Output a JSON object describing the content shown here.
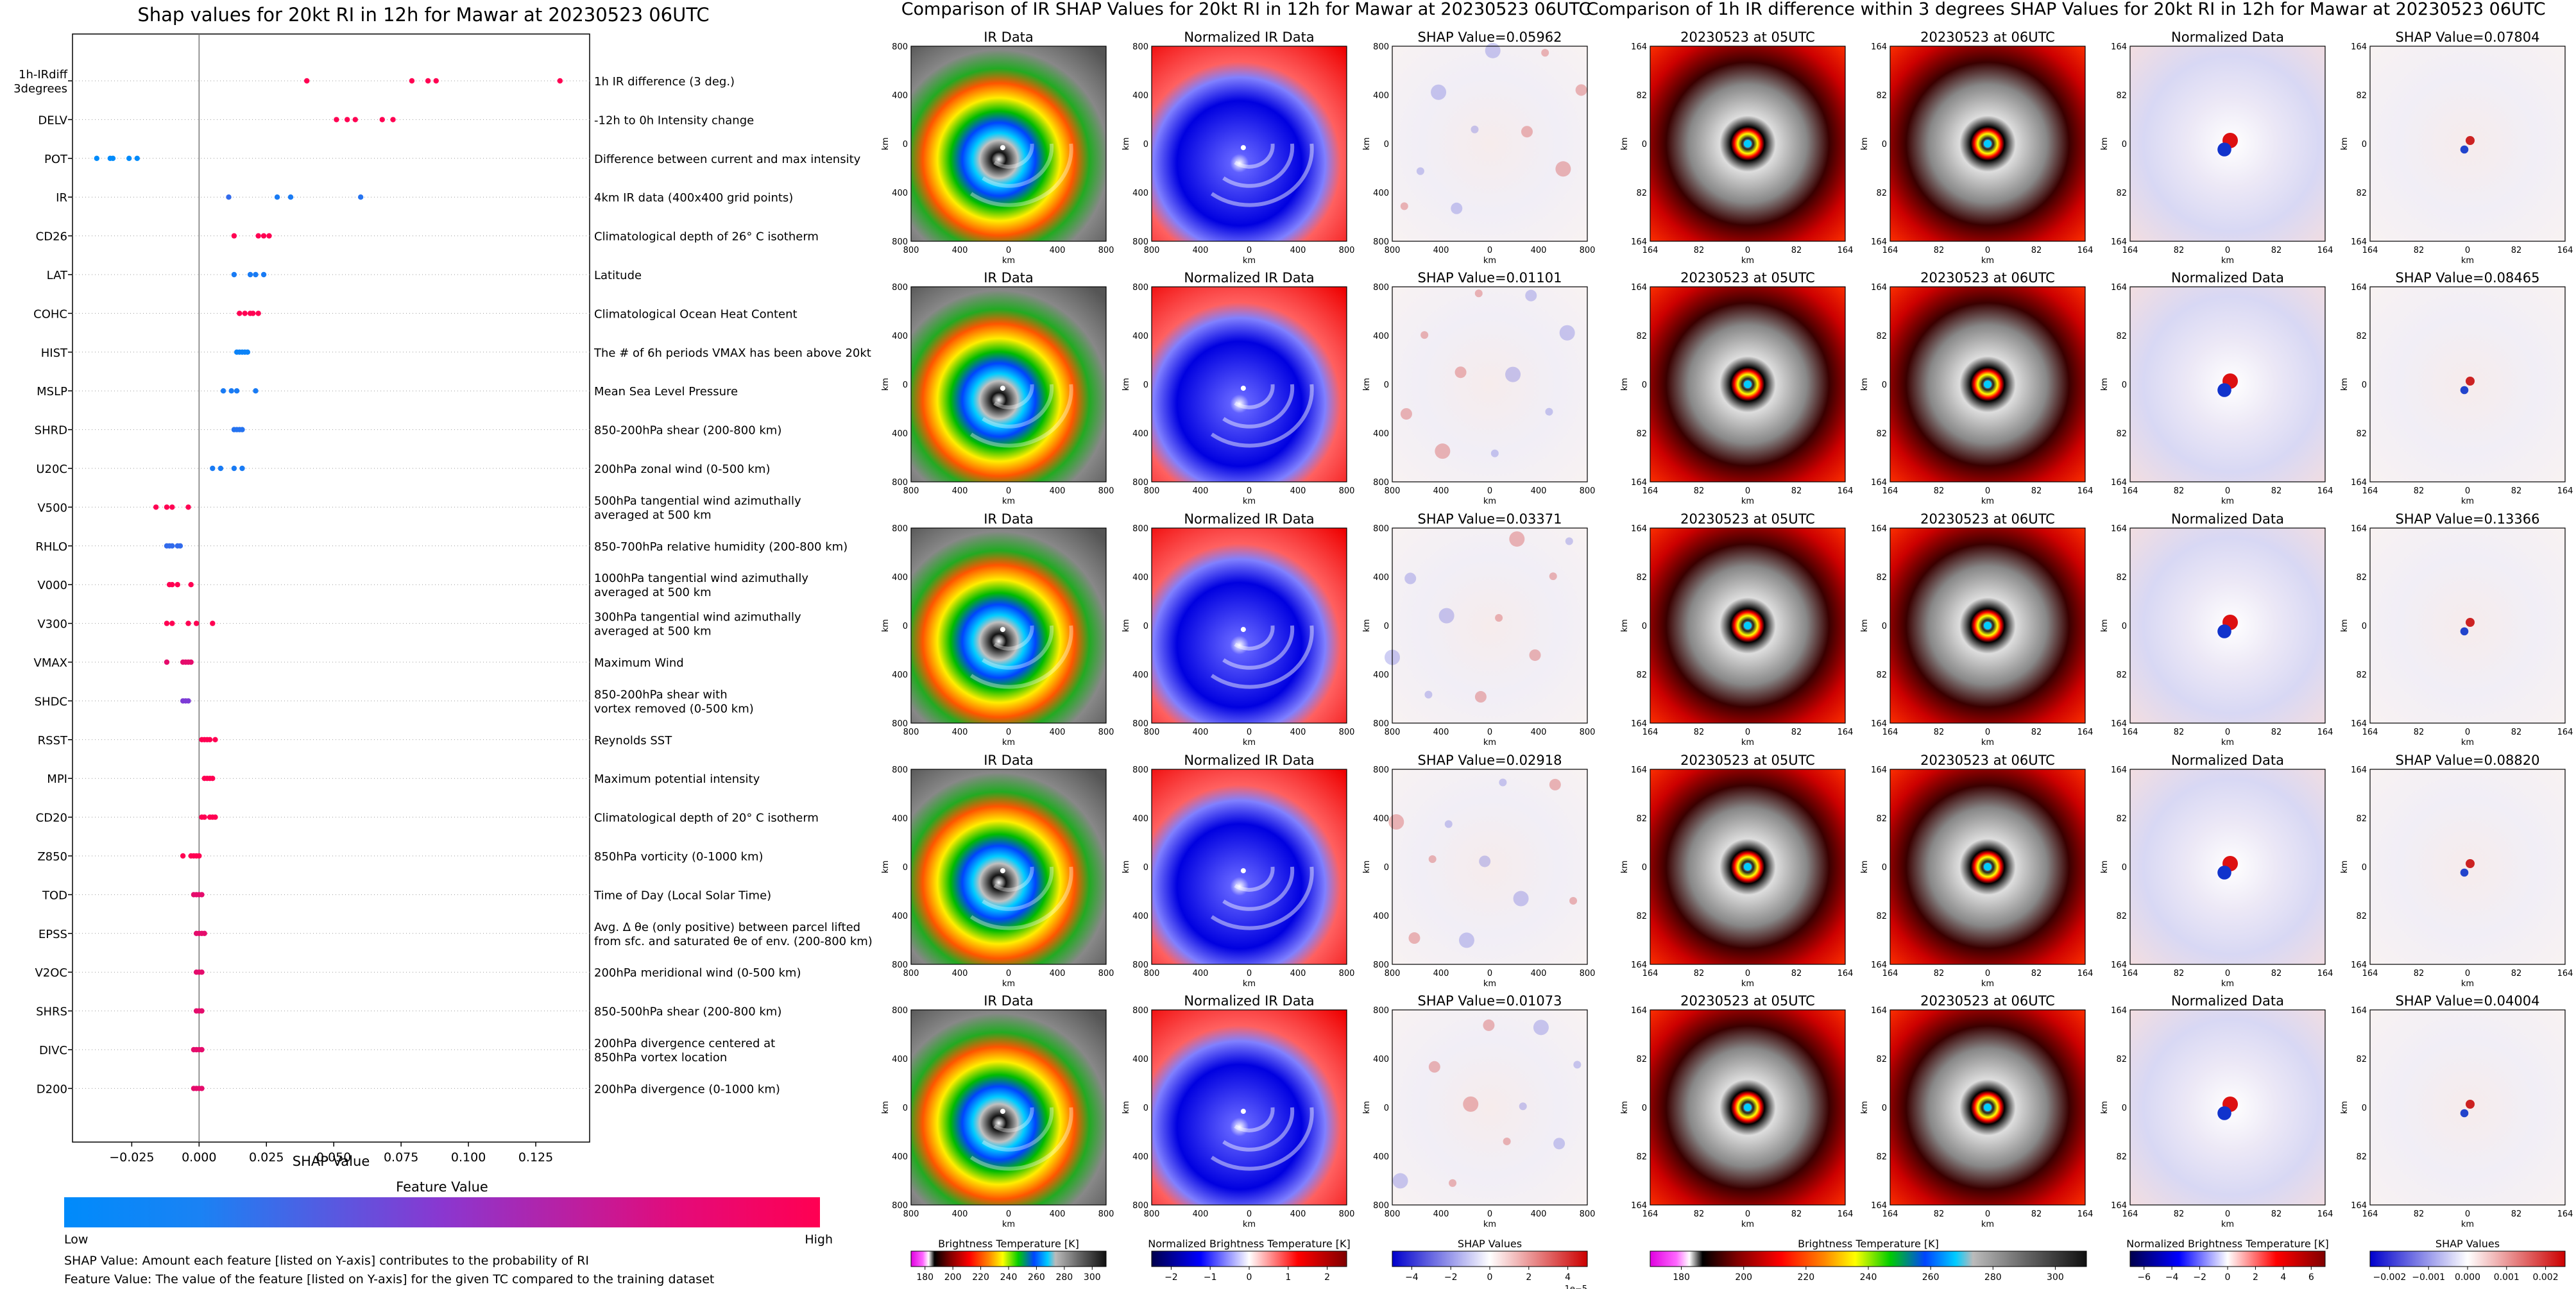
{
  "titles": {
    "left": "Shap values for 20kt RI in 12h for Mawar at 20230523 06UTC",
    "middle": "Comparison of IR SHAP Values for 20kt RI in 12h for Mawar at 20230523 06UTC",
    "right": "Comparison of 1h IR difference within 3 degrees SHAP Values for 20kt RI in 12h for Mawar at 20230523 06UTC"
  },
  "chart_data": [
    {
      "type": "scatter",
      "title": "Shap values for 20kt RI in 12h for Mawar at 20230523 06UTC",
      "xlabel": "SHAP Value",
      "ylabel": "",
      "xlim": [
        -0.047,
        0.145
      ],
      "xticks": [
        -0.025,
        0.0,
        0.025,
        0.05,
        0.075,
        0.1,
        0.125
      ],
      "xtick_labels": [
        "−0.025",
        "0.000",
        "0.025",
        "0.050",
        "0.075",
        "0.100",
        "0.125"
      ],
      "grid": false,
      "colorbar": {
        "title": "Feature Value",
        "low": "Low",
        "high": "High",
        "colors": [
          "#008bfb",
          "#7c3bd6",
          "#ff0052"
        ]
      },
      "features": [
        {
          "code": "1h-IRdiff\n3degrees",
          "desc": "1h IR difference (3 deg.)",
          "points": [
            [
              0.04,
              1.0
            ],
            [
              0.079,
              1.0
            ],
            [
              0.085,
              1.0
            ],
            [
              0.088,
              1.0
            ],
            [
              0.134,
              1.0
            ]
          ]
        },
        {
          "code": "DELV",
          "desc": "-12h to 0h Intensity change",
          "points": [
            [
              0.051,
              1.0
            ],
            [
              0.055,
              1.0
            ],
            [
              0.058,
              1.0
            ],
            [
              0.068,
              1.0
            ],
            [
              0.072,
              1.0
            ]
          ]
        },
        {
          "code": "POT",
          "desc": "Difference between current and max intensity",
          "points": [
            [
              -0.038,
              0.0
            ],
            [
              -0.033,
              0.0
            ],
            [
              -0.032,
              0.0
            ],
            [
              -0.026,
              0.0
            ],
            [
              -0.023,
              0.0
            ]
          ]
        },
        {
          "code": "IR",
          "desc": "4km IR data (400x400 grid points)",
          "points": [
            [
              0.011,
              0.2
            ],
            [
              0.029,
              0.1
            ],
            [
              0.034,
              0.1
            ],
            [
              0.06,
              0.15
            ]
          ]
        },
        {
          "code": "CD26",
          "desc": "Climatological depth of 26° C isotherm",
          "points": [
            [
              0.013,
              1.0
            ],
            [
              0.022,
              1.0
            ],
            [
              0.024,
              1.0
            ],
            [
              0.026,
              1.0
            ]
          ]
        },
        {
          "code": "LAT",
          "desc": "Latitude",
          "points": [
            [
              0.013,
              0.1
            ],
            [
              0.019,
              0.1
            ],
            [
              0.021,
              0.1
            ],
            [
              0.024,
              0.1
            ]
          ]
        },
        {
          "code": "COHC",
          "desc": "Climatological Ocean Heat Content",
          "points": [
            [
              0.015,
              1.0
            ],
            [
              0.017,
              1.0
            ],
            [
              0.019,
              1.0
            ],
            [
              0.02,
              1.0
            ],
            [
              0.022,
              1.0
            ]
          ]
        },
        {
          "code": "HIST",
          "desc": "The # of 6h periods VMAX has been above 20kt",
          "points": [
            [
              0.014,
              0.05
            ],
            [
              0.015,
              0.05
            ],
            [
              0.016,
              0.05
            ],
            [
              0.017,
              0.05
            ],
            [
              0.018,
              0.05
            ]
          ]
        },
        {
          "code": "MSLP",
          "desc": "Mean Sea Level Pressure",
          "points": [
            [
              0.009,
              0.1
            ],
            [
              0.012,
              0.1
            ],
            [
              0.014,
              0.1
            ],
            [
              0.021,
              0.1
            ]
          ]
        },
        {
          "code": "SHRD",
          "desc": "850-200hPa shear (200-800 km)",
          "points": [
            [
              0.013,
              0.15
            ],
            [
              0.014,
              0.15
            ],
            [
              0.015,
              0.15
            ],
            [
              0.016,
              0.15
            ]
          ]
        },
        {
          "code": "U20C",
          "desc": "200hPa zonal wind (0-500 km)",
          "points": [
            [
              0.005,
              0.1
            ],
            [
              0.008,
              0.1
            ],
            [
              0.013,
              0.1
            ],
            [
              0.016,
              0.1
            ]
          ]
        },
        {
          "code": "V500",
          "desc": "500hPa tangential wind azimuthally\naveraged at 500 km",
          "points": [
            [
              -0.016,
              1.0
            ],
            [
              -0.012,
              1.0
            ],
            [
              -0.01,
              1.0
            ],
            [
              -0.004,
              1.0
            ]
          ]
        },
        {
          "code": "RHLO",
          "desc": "850-700hPa relative humidity (200-800 km)",
          "points": [
            [
              -0.012,
              0.2
            ],
            [
              -0.011,
              0.2
            ],
            [
              -0.01,
              0.2
            ],
            [
              -0.008,
              0.2
            ],
            [
              -0.007,
              0.2
            ]
          ]
        },
        {
          "code": "V000",
          "desc": "1000hPa tangential wind azimuthally\naveraged at 500 km",
          "points": [
            [
              -0.011,
              1.0
            ],
            [
              -0.01,
              1.0
            ],
            [
              -0.008,
              1.0
            ],
            [
              -0.003,
              1.0
            ]
          ]
        },
        {
          "code": "V300",
          "desc": "300hPa tangential wind azimuthally\naveraged at 500 km",
          "points": [
            [
              -0.012,
              1.0
            ],
            [
              -0.01,
              1.0
            ],
            [
              -0.004,
              1.0
            ],
            [
              -0.001,
              1.0
            ],
            [
              0.005,
              1.0
            ]
          ]
        },
        {
          "code": "VMAX",
          "desc": "Maximum Wind",
          "points": [
            [
              -0.012,
              0.9
            ],
            [
              -0.006,
              0.9
            ],
            [
              -0.005,
              0.9
            ],
            [
              -0.004,
              0.9
            ],
            [
              -0.003,
              0.9
            ]
          ]
        },
        {
          "code": "SHDC",
          "desc": "850-200hPa shear with\nvortex removed (0-500 km)",
          "points": [
            [
              -0.006,
              0.5
            ],
            [
              -0.005,
              0.5
            ],
            [
              -0.004,
              0.5
            ]
          ]
        },
        {
          "code": "RSST",
          "desc": "Reynolds SST",
          "points": [
            [
              0.001,
              1.0
            ],
            [
              0.002,
              1.0
            ],
            [
              0.003,
              1.0
            ],
            [
              0.004,
              1.0
            ],
            [
              0.006,
              1.0
            ]
          ]
        },
        {
          "code": "MPI",
          "desc": "Maximum potential intensity",
          "points": [
            [
              0.002,
              1.0
            ],
            [
              0.003,
              1.0
            ],
            [
              0.004,
              1.0
            ],
            [
              0.005,
              1.0
            ]
          ]
        },
        {
          "code": "CD20",
          "desc": "Climatological depth of 20° C isotherm",
          "points": [
            [
              0.001,
              1.0
            ],
            [
              0.002,
              1.0
            ],
            [
              0.004,
              1.0
            ],
            [
              0.005,
              1.0
            ],
            [
              0.006,
              1.0
            ]
          ]
        },
        {
          "code": "Z850",
          "desc": "850hPa vorticity (0-1000 km)",
          "points": [
            [
              -0.006,
              1.0
            ],
            [
              -0.003,
              1.0
            ],
            [
              -0.002,
              1.0
            ],
            [
              -0.001,
              1.0
            ],
            [
              0.0,
              1.0
            ]
          ]
        },
        {
          "code": "TOD",
          "desc": "Time of Day (Local Solar Time)",
          "points": [
            [
              -0.002,
              0.9
            ],
            [
              -0.001,
              0.9
            ],
            [
              0.0,
              0.9
            ],
            [
              0.001,
              0.9
            ]
          ]
        },
        {
          "code": "EPSS",
          "desc": "Avg. Δ θe (only positive) between parcel lifted\nfrom sfc. and saturated θe of env. (200-800 km)",
          "points": [
            [
              -0.001,
              0.9
            ],
            [
              0.0,
              0.9
            ],
            [
              0.001,
              0.9
            ],
            [
              0.002,
              0.9
            ]
          ]
        },
        {
          "code": "V2OC",
          "desc": "200hPa meridional wind (0-500 km)",
          "points": [
            [
              -0.001,
              0.9
            ],
            [
              0.0,
              0.9
            ],
            [
              0.001,
              0.9
            ]
          ]
        },
        {
          "code": "SHRS",
          "desc": "850-500hPa shear (200-800 km)",
          "points": [
            [
              -0.001,
              0.9
            ],
            [
              0.0,
              0.9
            ],
            [
              0.001,
              0.9
            ]
          ]
        },
        {
          "code": "DIVC",
          "desc": "200hPa divergence centered at\n850hPa vortex location",
          "points": [
            [
              -0.002,
              0.9
            ],
            [
              -0.001,
              0.9
            ],
            [
              0.0,
              0.9
            ],
            [
              0.001,
              0.9
            ]
          ]
        },
        {
          "code": "D200",
          "desc": "200hPa divergence (0-1000 km)",
          "points": [
            [
              -0.002,
              0.9
            ],
            [
              -0.001,
              0.9
            ],
            [
              0.0,
              0.9
            ],
            [
              0.001,
              0.9
            ]
          ]
        }
      ]
    },
    {
      "type": "heatmap",
      "title": "Comparison of IR SHAP Values for 20kt RI in 12h for Mawar at 20230523 06UTC",
      "columns": [
        "IR Data",
        "Normalized IR Data",
        "SHAP Value"
      ],
      "shap_values": [
        "0.05962",
        "0.01101",
        "0.03371",
        "0.02918",
        "0.01073"
      ],
      "xlabel": "km",
      "ylabel": "km",
      "ticks": [
        "800",
        "400",
        "0",
        "400",
        "800"
      ],
      "colorbars": [
        {
          "label": "Brightness Temperature [K]",
          "ticks": [
            "180",
            "200",
            "220",
            "240",
            "260",
            "280",
            "300"
          ]
        },
        {
          "label": "Normalized Brightness Temperature [K]",
          "ticks": [
            "−2",
            "−1",
            "0",
            "1",
            "2"
          ]
        },
        {
          "label": "SHAP Values",
          "ticks": [
            "−4",
            "−2",
            "0",
            "2",
            "4"
          ],
          "offset": "1e−5"
        }
      ]
    },
    {
      "type": "heatmap",
      "title": "Comparison of 1h IR difference within 3 degrees SHAP Values for 20kt RI in 12h for Mawar at 20230523 06UTC",
      "columns": [
        "20230523 at 05UTC",
        "20230523 at 06UTC",
        "Normalized Data",
        "SHAP Value"
      ],
      "shap_values": [
        "0.07804",
        "0.08465",
        "0.13366",
        "0.08820",
        "0.04004"
      ],
      "xlabel": "km",
      "ylabel": "km",
      "ticks": [
        "164",
        "82",
        "0",
        "82",
        "164"
      ],
      "colorbars": [
        {
          "label": "Brightness Temperature [K]",
          "ticks": [
            "180",
            "200",
            "220",
            "240",
            "260",
            "280",
            "300"
          ]
        },
        {
          "label": "Normalized Brightness Temperature [K]",
          "ticks": [
            "−6",
            "−4",
            "−2",
            "0",
            "2",
            "4",
            "6"
          ]
        },
        {
          "label": "SHAP Values",
          "ticks": [
            "−0.002",
            "−0.001",
            "0.000",
            "0.001",
            "0.002"
          ]
        }
      ]
    }
  ],
  "footnotes": {
    "shap": "SHAP Value: Amount each feature [listed on Y-axis] contributes to the probability of RI",
    "feature": "Feature Value: The value of the feature [listed on Y-axis] for the given TC compared to the training dataset"
  },
  "colors": {
    "low": "#008bfb",
    "mid": "#7c3bd6",
    "high": "#ff0052",
    "shap_pos": "#cc0000",
    "shap_neg": "#0000cc"
  }
}
